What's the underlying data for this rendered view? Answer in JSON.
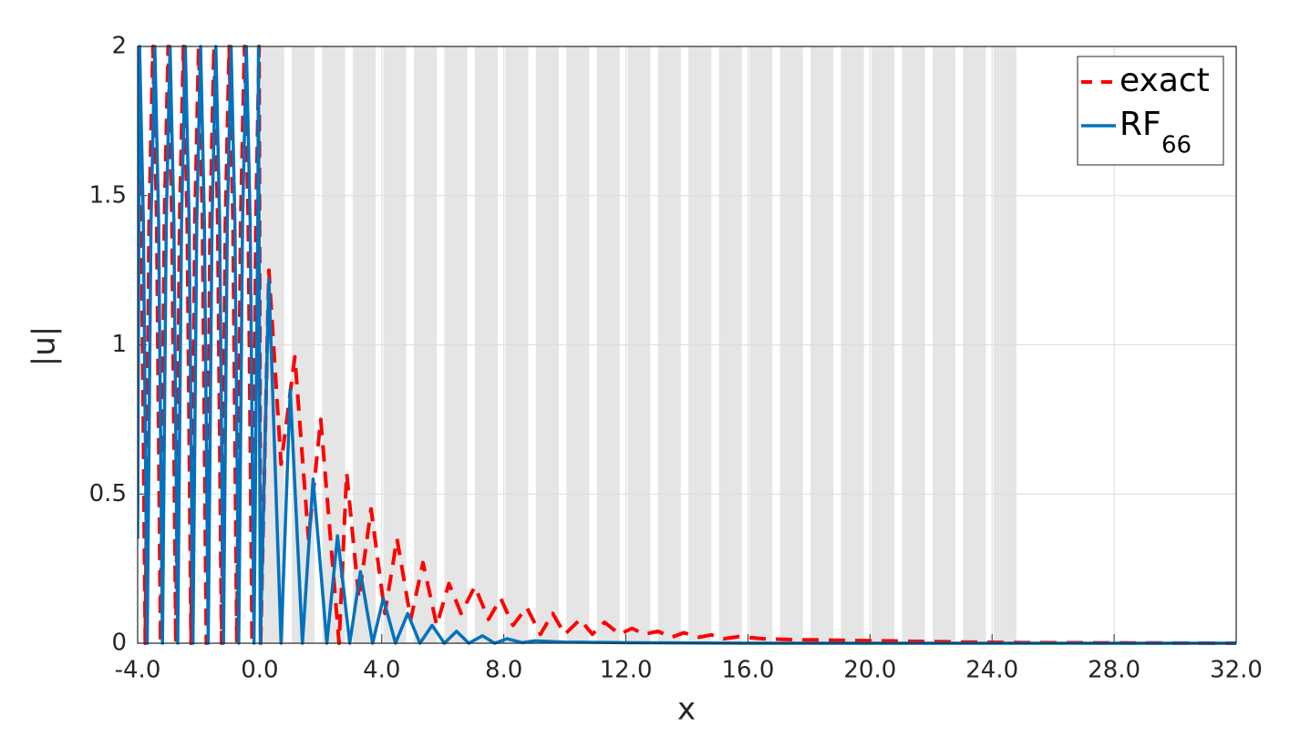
{
  "chart_data": {
    "type": "line",
    "xlabel": "x",
    "ylabel": "|u|",
    "xlim": [
      -4,
      32
    ],
    "ylim": [
      0,
      2
    ],
    "xticks": [
      {
        "value": -4,
        "label": "-4.0"
      },
      {
        "value": 0,
        "label": "0.0"
      },
      {
        "value": 4,
        "label": "4.0"
      },
      {
        "value": 8,
        "label": "8.0"
      },
      {
        "value": 12,
        "label": "12.0"
      },
      {
        "value": 16,
        "label": "16.0"
      },
      {
        "value": 20,
        "label": "20.0"
      },
      {
        "value": 24,
        "label": "24.0"
      },
      {
        "value": 28,
        "label": "28.0"
      },
      {
        "value": 32,
        "label": "32.0"
      }
    ],
    "yticks": [
      0,
      0.5,
      1,
      1.5,
      2
    ],
    "grid": true,
    "legend": "upper right",
    "shaded_color": "#e5e5e5",
    "shaded_regions": [
      [
        0.05,
        0.8
      ],
      [
        1.05,
        1.8
      ],
      [
        2.05,
        2.8
      ],
      [
        3.05,
        3.8
      ],
      [
        4.05,
        4.8
      ],
      [
        5.05,
        5.8
      ],
      [
        6.05,
        6.8
      ],
      [
        7.05,
        7.8
      ],
      [
        8.05,
        8.8
      ],
      [
        9.05,
        9.8
      ],
      [
        10.05,
        10.8
      ],
      [
        11.05,
        11.8
      ],
      [
        12.05,
        12.8
      ],
      [
        13.05,
        13.8
      ],
      [
        14.05,
        14.8
      ],
      [
        15.05,
        15.8
      ],
      [
        16.05,
        16.8
      ],
      [
        17.05,
        17.8
      ],
      [
        18.05,
        18.8
      ],
      [
        19.05,
        19.8
      ],
      [
        20.05,
        20.8
      ],
      [
        21.05,
        21.8
      ],
      [
        22.05,
        22.8
      ],
      [
        23.05,
        23.8
      ],
      [
        24.05,
        24.8
      ]
    ],
    "series": [
      {
        "name": "exact",
        "color": "#ff0000",
        "dashed": true,
        "x": [
          -4,
          -3.875,
          -3.75,
          -3.625,
          -3.5,
          -3.375,
          -3.25,
          -3.125,
          -3,
          -2.875,
          -2.75,
          -2.625,
          -2.5,
          -2.375,
          -2.25,
          -2.125,
          -2,
          -1.875,
          -1.75,
          -1.625,
          -1.5,
          -1.375,
          -1.25,
          -1.125,
          -1,
          -0.875,
          -0.75,
          -0.625,
          -0.5,
          -0.375,
          -0.25,
          -0.125,
          -0.02,
          0.03,
          0.3,
          0.7,
          1.15,
          1.6,
          2.0,
          2.6,
          2.85,
          3.25,
          3.65,
          4.1,
          4.5,
          4.95,
          5.35,
          5.8,
          6.2,
          6.6,
          7.05,
          7.5,
          7.9,
          8.3,
          8.75,
          9.2,
          9.6,
          10.0,
          10.5,
          10.9,
          11.3,
          11.8,
          12.2,
          12.6,
          13.05,
          13.5,
          13.9,
          14.4,
          14.8,
          15.2,
          15.7,
          16.5,
          17.5,
          19,
          21,
          23,
          25,
          28,
          32
        ],
        "values": [
          2,
          1.41,
          0,
          1.41,
          2,
          1.41,
          0,
          1.41,
          2,
          1.41,
          0,
          1.41,
          2,
          1.41,
          0,
          1.41,
          2,
          1.41,
          0,
          1.41,
          2,
          1.41,
          0,
          1.41,
          2,
          1.41,
          0,
          1.41,
          2,
          1.41,
          0,
          1.41,
          2,
          0,
          1.25,
          0.6,
          0.96,
          0.35,
          0.75,
          0,
          0.57,
          0.15,
          0.45,
          0.1,
          0.35,
          0.08,
          0.27,
          0.06,
          0.2,
          0.1,
          0.19,
          0.08,
          0.15,
          0.06,
          0.12,
          0.03,
          0.1,
          0.03,
          0.08,
          0.03,
          0.07,
          0.03,
          0.05,
          0.03,
          0.04,
          0.02,
          0.035,
          0.02,
          0.028,
          0.015,
          0.022,
          0.015,
          0.012,
          0.01,
          0.007,
          0.004,
          0.002,
          0.001,
          0
        ]
      },
      {
        "name": "RF",
        "name_subscript": "66",
        "color": "#0072bd",
        "dashed": false,
        "x": [
          -4,
          -3.9375,
          -3.8125,
          -3.6875,
          -3.5625,
          -3.4375,
          -3.3125,
          -3.1875,
          -3.0625,
          -2.9375,
          -2.8125,
          -2.6875,
          -2.5625,
          -2.4375,
          -2.3125,
          -2.1875,
          -2.0625,
          -1.9375,
          -1.8125,
          -1.6875,
          -1.5625,
          -1.4375,
          -1.3125,
          -1.1875,
          -1.0625,
          -0.9375,
          -0.8125,
          -0.6875,
          -0.5625,
          -0.4375,
          -0.3125,
          -0.1875,
          -0.0625,
          -0.04,
          0.02,
          0.3,
          0.7,
          1.0,
          1.4,
          1.75,
          2.2,
          2.55,
          2.95,
          3.3,
          3.7,
          4.05,
          4.45,
          4.85,
          5.25,
          5.65,
          6.05,
          6.45,
          6.85,
          7.3,
          7.7,
          8.1,
          8.6,
          9,
          10,
          12,
          16,
          32
        ],
        "values": [
          0.35,
          2,
          1.41,
          0,
          1.41,
          2,
          1.41,
          0,
          1.41,
          2,
          1.41,
          0,
          1.41,
          2,
          1.41,
          0,
          1.41,
          2,
          1.41,
          0,
          1.41,
          2,
          1.41,
          0,
          1.41,
          2,
          1.41,
          0,
          1.41,
          2,
          1.41,
          0,
          1.41,
          2,
          0,
          1.22,
          0,
          0.85,
          0,
          0.55,
          0,
          0.36,
          0,
          0.24,
          0,
          0.15,
          0,
          0.1,
          0,
          0.06,
          0,
          0.04,
          0,
          0.025,
          0,
          0.015,
          0.002,
          0.008,
          0.004,
          0.002,
          0,
          0
        ]
      }
    ]
  }
}
